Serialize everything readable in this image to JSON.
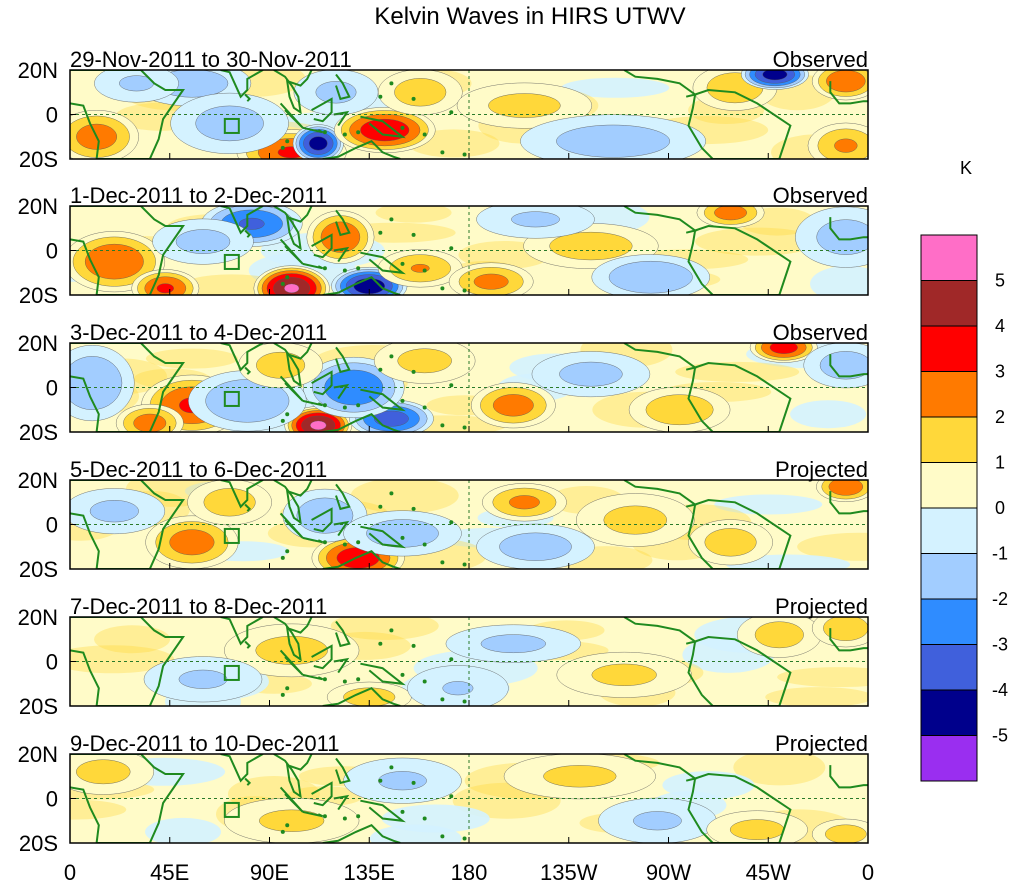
{
  "chart_data": {
    "type": "heatmap",
    "title": "Kelvin Waves in HIRS UTWV",
    "units": "K",
    "x_tick_labels": [
      "0",
      "45E",
      "90E",
      "135E",
      "180",
      "135W",
      "90W",
      "45W",
      "0"
    ],
    "x_ticks_deg": [
      0,
      45,
      90,
      135,
      180,
      225,
      270,
      315,
      360
    ],
    "y_tick_labels": [
      "20N",
      "0",
      "20S"
    ],
    "y_ticks_deg": [
      20,
      0,
      -20
    ],
    "xlim": [
      0,
      360
    ],
    "ylim": [
      -20,
      20
    ],
    "reference_lines": {
      "equator_lat": 0,
      "dateline_lon": 180
    },
    "colorbar": {
      "levels": [
        "5",
        "4",
        "3",
        "2",
        "1",
        "0",
        "-1",
        "-2",
        "-3",
        "-4",
        "-5"
      ],
      "colors": [
        "#ff6ec7",
        "#a02828",
        "#ff0000",
        "#ff7a00",
        "#ffd83a",
        "#fffbc8",
        "#d4f2ff",
        "#a2cdff",
        "#2f8cff",
        "#4060dc",
        "#00008c",
        "#9a2ef0"
      ]
    },
    "panels": [
      {
        "date_range": "29-Nov-2011 to 30-Nov-2011",
        "status": "Observed",
        "features": [
          {
            "lon": 12,
            "lat": -10,
            "value": 2.6,
            "slon": 10,
            "slat": 7
          },
          {
            "lon": 55,
            "lat": 14,
            "value": -1.6,
            "slon": 14,
            "slat": 6
          },
          {
            "lon": 100,
            "lat": -17,
            "value": 3.2,
            "slon": 13,
            "slat": 6
          },
          {
            "lon": 112,
            "lat": -13,
            "value": -4.6,
            "slon": 6,
            "slat": 5
          },
          {
            "lon": 142,
            "lat": -7,
            "value": 3.9,
            "slon": 12,
            "slat": 6
          },
          {
            "lon": 158,
            "lat": 10,
            "value": 1.6,
            "slon": 10,
            "slat": 6
          },
          {
            "lon": 72,
            "lat": -4,
            "value": -1.5,
            "slon": 14,
            "slat": 8
          },
          {
            "lon": 120,
            "lat": 10,
            "value": -1.3,
            "slon": 10,
            "slat": 6
          },
          {
            "lon": 205,
            "lat": 4,
            "value": 1.4,
            "slon": 16,
            "slat": 6
          },
          {
            "lon": 245,
            "lat": -12,
            "value": -1.6,
            "slon": 22,
            "slat": 7
          },
          {
            "lon": 300,
            "lat": 12,
            "value": 1.8,
            "slon": 10,
            "slat": 6
          },
          {
            "lon": 318,
            "lat": 18,
            "value": -4.6,
            "slon": 8,
            "slat": 4
          },
          {
            "lon": 350,
            "lat": 15,
            "value": 3.0,
            "slon": 8,
            "slat": 5
          },
          {
            "lon": 350,
            "lat": -14,
            "value": 2.2,
            "slon": 9,
            "slat": 6
          },
          {
            "lon": 30,
            "lat": 14,
            "value": -1.2,
            "slon": 10,
            "slat": 5
          }
        ]
      },
      {
        "date_range": "1-Dec-2011 to 2-Dec-2011",
        "status": "Observed",
        "features": [
          {
            "lon": 20,
            "lat": -5,
            "value": 3.0,
            "slon": 12,
            "slat": 8
          },
          {
            "lon": 43,
            "lat": -17,
            "value": 3.2,
            "slon": 8,
            "slat": 5
          },
          {
            "lon": 100,
            "lat": -17,
            "value": 5.2,
            "slon": 9,
            "slat": 6
          },
          {
            "lon": 135,
            "lat": -16,
            "value": -4.8,
            "slon": 9,
            "slat": 5
          },
          {
            "lon": 122,
            "lat": 6,
            "value": 3.0,
            "slon": 8,
            "slat": 7
          },
          {
            "lon": 82,
            "lat": 12,
            "value": -3.2,
            "slon": 12,
            "slat": 6
          },
          {
            "lon": 158,
            "lat": -8,
            "value": 2.1,
            "slon": 10,
            "slat": 5
          },
          {
            "lon": 190,
            "lat": -14,
            "value": 2.4,
            "slon": 10,
            "slat": 5
          },
          {
            "lon": 235,
            "lat": 2,
            "value": 1.6,
            "slon": 16,
            "slat": 6
          },
          {
            "lon": 262,
            "lat": -12,
            "value": -2.0,
            "slon": 14,
            "slat": 6
          },
          {
            "lon": 298,
            "lat": 17,
            "value": 2.6,
            "slon": 8,
            "slat": 4
          },
          {
            "lon": 350,
            "lat": 6,
            "value": -1.5,
            "slon": 12,
            "slat": 8
          },
          {
            "lon": 210,
            "lat": 14,
            "value": -1.2,
            "slon": 14,
            "slat": 5
          },
          {
            "lon": 60,
            "lat": 4,
            "value": -1.4,
            "slon": 12,
            "slat": 6
          }
        ]
      },
      {
        "date_range": "3-Dec-2011 to 4-Dec-2011",
        "status": "Observed",
        "features": [
          {
            "lon": 55,
            "lat": -8,
            "value": 3.2,
            "slon": 12,
            "slat": 8
          },
          {
            "lon": 36,
            "lat": -16,
            "value": 2.6,
            "slon": 8,
            "slat": 5
          },
          {
            "lon": 112,
            "lat": -17,
            "value": 5.3,
            "slon": 8,
            "slat": 5
          },
          {
            "lon": 145,
            "lat": -14,
            "value": -3.6,
            "slon": 10,
            "slat": 5
          },
          {
            "lon": 128,
            "lat": 0,
            "value": -3.0,
            "slon": 12,
            "slat": 8
          },
          {
            "lon": 80,
            "lat": -6,
            "value": -2.0,
            "slon": 14,
            "slat": 8
          },
          {
            "lon": 95,
            "lat": 10,
            "value": 1.5,
            "slon": 10,
            "slat": 6
          },
          {
            "lon": 200,
            "lat": -8,
            "value": 2.6,
            "slon": 10,
            "slat": 6
          },
          {
            "lon": 235,
            "lat": 6,
            "value": -1.4,
            "slon": 14,
            "slat": 6
          },
          {
            "lon": 275,
            "lat": -10,
            "value": 1.8,
            "slon": 12,
            "slat": 6
          },
          {
            "lon": 322,
            "lat": 18,
            "value": 3.6,
            "slon": 8,
            "slat": 4
          },
          {
            "lon": 10,
            "lat": 2,
            "value": -2.0,
            "slon": 10,
            "slat": 10
          },
          {
            "lon": 350,
            "lat": 10,
            "value": -1.6,
            "slon": 10,
            "slat": 6
          },
          {
            "lon": 160,
            "lat": 12,
            "value": 1.4,
            "slon": 12,
            "slat": 6
          }
        ]
      },
      {
        "date_range": "5-Dec-2011 to 6-Dec-2011",
        "status": "Projected",
        "features": [
          {
            "lon": 55,
            "lat": -8,
            "value": 2.6,
            "slon": 11,
            "slat": 7
          },
          {
            "lon": 72,
            "lat": 10,
            "value": 1.6,
            "slon": 10,
            "slat": 6
          },
          {
            "lon": 130,
            "lat": -15,
            "value": 3.8,
            "slon": 11,
            "slat": 6
          },
          {
            "lon": 115,
            "lat": 4,
            "value": -1.8,
            "slon": 10,
            "slat": 7
          },
          {
            "lon": 150,
            "lat": -4,
            "value": -1.6,
            "slon": 14,
            "slat": 6
          },
          {
            "lon": 205,
            "lat": 10,
            "value": 2.3,
            "slon": 10,
            "slat": 5
          },
          {
            "lon": 210,
            "lat": -10,
            "value": -1.6,
            "slon": 14,
            "slat": 6
          },
          {
            "lon": 255,
            "lat": 2,
            "value": 1.4,
            "slon": 14,
            "slat": 7
          },
          {
            "lon": 298,
            "lat": -8,
            "value": 1.6,
            "slon": 10,
            "slat": 6
          },
          {
            "lon": 350,
            "lat": 17,
            "value": 3.0,
            "slon": 7,
            "slat": 4
          },
          {
            "lon": 20,
            "lat": 6,
            "value": -1.3,
            "slon": 12,
            "slat": 6
          }
        ]
      },
      {
        "date_range": "7-Dec-2011 to 8-Dec-2011",
        "status": "Projected",
        "features": [
          {
            "lon": 100,
            "lat": 5,
            "value": 1.4,
            "slon": 16,
            "slat": 7
          },
          {
            "lon": 135,
            "lat": -16,
            "value": 1.6,
            "slon": 10,
            "slat": 4
          },
          {
            "lon": 60,
            "lat": -8,
            "value": -1.2,
            "slon": 14,
            "slat": 6
          },
          {
            "lon": 200,
            "lat": 8,
            "value": -1.3,
            "slon": 16,
            "slat": 5
          },
          {
            "lon": 250,
            "lat": -6,
            "value": 1.3,
            "slon": 16,
            "slat": 6
          },
          {
            "lon": 320,
            "lat": 12,
            "value": 1.5,
            "slon": 10,
            "slat": 6
          },
          {
            "lon": 350,
            "lat": 15,
            "value": 1.8,
            "slon": 8,
            "slat": 5
          },
          {
            "lon": 175,
            "lat": -12,
            "value": -1.1,
            "slon": 12,
            "slat": 6
          }
        ]
      },
      {
        "date_range": "9-Dec-2011 to 10-Dec-2011",
        "status": "Projected",
        "features": [
          {
            "lon": 15,
            "lat": 12,
            "value": 1.4,
            "slon": 12,
            "slat": 6
          },
          {
            "lon": 100,
            "lat": -10,
            "value": 1.3,
            "slon": 16,
            "slat": 6
          },
          {
            "lon": 150,
            "lat": 8,
            "value": -1.2,
            "slon": 14,
            "slat": 6
          },
          {
            "lon": 230,
            "lat": 10,
            "value": 1.3,
            "slon": 18,
            "slat": 6
          },
          {
            "lon": 265,
            "lat": -10,
            "value": -1.2,
            "slon": 14,
            "slat": 6
          },
          {
            "lon": 310,
            "lat": -14,
            "value": 1.4,
            "slon": 12,
            "slat": 5
          },
          {
            "lon": 350,
            "lat": -16,
            "value": 1.6,
            "slon": 8,
            "slat": 4
          }
        ]
      }
    ]
  }
}
